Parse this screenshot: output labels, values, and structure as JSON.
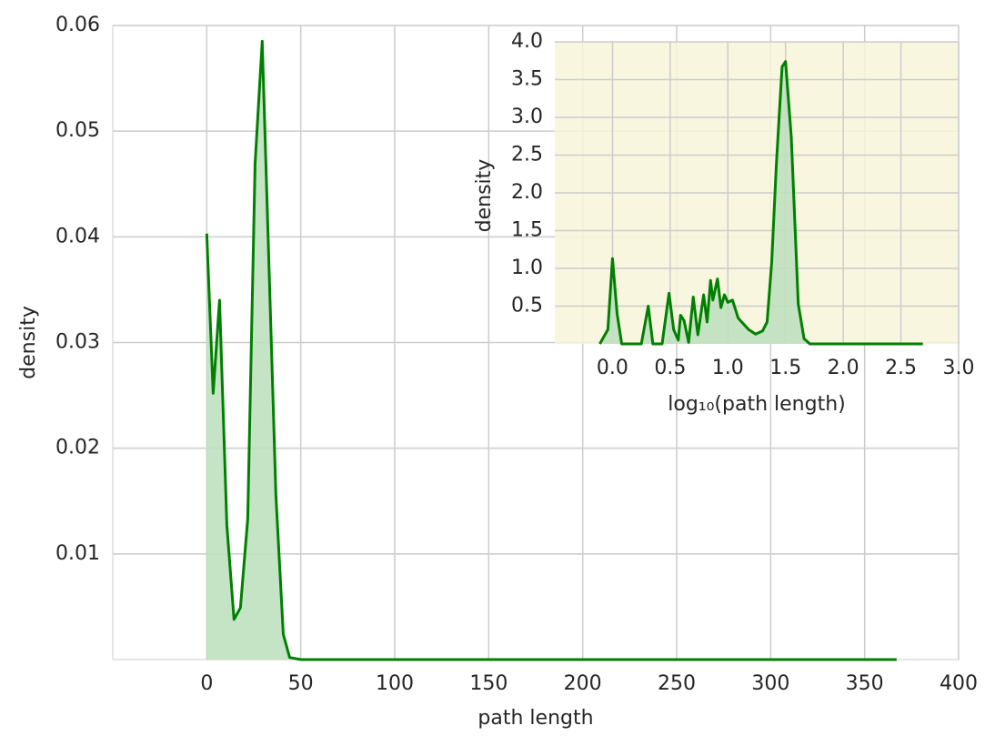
{
  "chart_data": [
    {
      "type": "area",
      "x_label": "path length",
      "y_label": "density",
      "x": [
        0,
        3.4,
        6.8,
        10.7,
        14.5,
        17.9,
        21.8,
        25.7,
        29.5,
        36.8,
        40.7,
        44.1,
        50,
        367
      ],
      "values": [
        0.0403,
        0.0252,
        0.034,
        0.0127,
        0.0038,
        0.0049,
        0.0133,
        0.0469,
        0.0585,
        0.0155,
        0.0024,
        0.0002,
        0,
        0
      ],
      "color": "#008000",
      "fill_color": "#bfe0bf",
      "xlim": [
        -50,
        400
      ],
      "xticks": [
        0,
        50,
        100,
        150,
        200,
        250,
        300,
        350,
        400
      ],
      "ylim": [
        0,
        0.06
      ],
      "yticks": [
        0.01,
        0.02,
        0.03,
        0.04,
        0.05,
        0.06
      ],
      "grid": true
    },
    {
      "type": "area",
      "x_label": "log₁₀(path length)",
      "y_label": "density",
      "x": [
        -0.11,
        -0.04,
        0,
        0.04,
        0.08,
        0.25,
        0.31,
        0.35,
        0.43,
        0.49,
        0.53,
        0.57,
        0.59,
        0.62,
        0.66,
        0.7,
        0.74,
        0.79,
        0.82,
        0.85,
        0.87,
        0.91,
        0.94,
        0.97,
        1.0,
        1.04,
        1.09,
        1.18,
        1.24,
        1.3,
        1.34,
        1.38,
        1.42,
        1.47,
        1.5,
        1.55,
        1.61,
        1.66,
        1.71,
        2.69
      ],
      "values": [
        0,
        0.19,
        1.13,
        0.4,
        0,
        0,
        0.5,
        0,
        0,
        0.67,
        0.19,
        0.05,
        0.38,
        0.31,
        0.02,
        0.62,
        0.12,
        0.65,
        0.29,
        0.84,
        0.58,
        0.86,
        0.48,
        0.65,
        0.55,
        0.58,
        0.34,
        0.19,
        0.13,
        0.17,
        0.29,
        1.08,
        2.37,
        3.67,
        3.74,
        2.73,
        0.53,
        0.07,
        0,
        0
      ],
      "color": "#008000",
      "fill_color": "#bfe0bf",
      "background": "#f7f4d8",
      "xlim": [
        -0.5,
        3.0
      ],
      "xticks": [
        {
          "value": 0,
          "label": "0.0"
        },
        0.5,
        {
          "value": 1,
          "label": "1.0"
        },
        1.5,
        {
          "value": 2,
          "label": "2.0"
        },
        2.5,
        {
          "value": 3,
          "label": "3.0"
        }
      ],
      "ylim": [
        0,
        4.0
      ],
      "yticks": [
        0.5,
        {
          "value": 1,
          "label": "1.0"
        },
        1.5,
        {
          "value": 2,
          "label": "2.0"
        },
        2.5,
        {
          "value": 3,
          "label": "3.0"
        },
        3.5,
        {
          "value": 4,
          "label": "4.0"
        }
      ],
      "grid": true
    }
  ]
}
